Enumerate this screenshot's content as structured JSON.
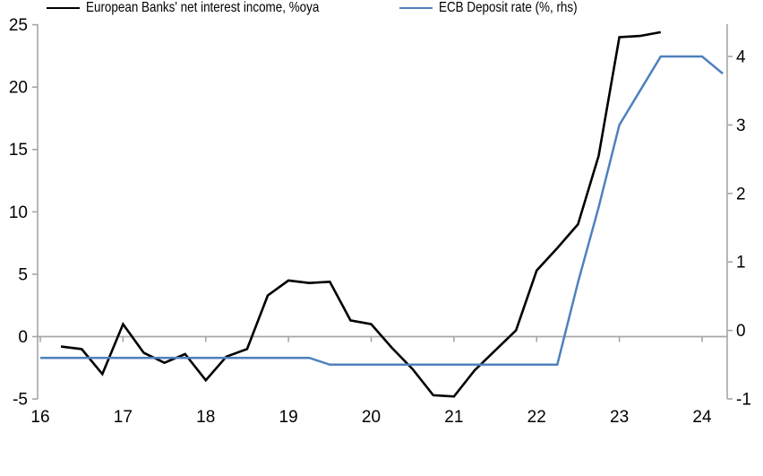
{
  "chart_data": {
    "type": "line",
    "title": "",
    "xlabel": "",
    "ylabel": "",
    "x_axis": {
      "ticks": [
        16,
        17,
        18,
        19,
        20,
        21,
        22,
        23,
        24
      ],
      "tick_labels": [
        "16",
        "17",
        "18",
        "19",
        "20",
        "21",
        "22",
        "23",
        "24"
      ],
      "range": [
        16,
        24.3
      ]
    },
    "left_axis": {
      "ticks": [
        -5,
        0,
        5,
        10,
        15,
        20,
        25
      ],
      "tick_labels": [
        "-5",
        "0",
        "5",
        "10",
        "15",
        "20",
        "25"
      ],
      "range": [
        -5,
        25.1
      ]
    },
    "right_axis": {
      "ticks": [
        -1,
        0,
        1,
        2,
        3,
        4
      ],
      "tick_labels": [
        "-1",
        "0",
        "1",
        "2",
        "3",
        "4"
      ],
      "range": [
        -1,
        4.47
      ]
    },
    "grid": "zero-line-only",
    "legend_position": "bottom",
    "colors": {
      "nii_line": "#000000",
      "ecb_line": "#4F81BD",
      "axis_gray": "#A6A6A6",
      "text": "#000000"
    },
    "series": [
      {
        "name": "European Banks' net interest income, %oya",
        "axis": "left",
        "color": "#000000",
        "x": [
          16.25,
          16.5,
          16.75,
          17.0,
          17.25,
          17.5,
          17.75,
          18.0,
          18.25,
          18.5,
          18.75,
          19.0,
          19.25,
          19.5,
          19.75,
          20.0,
          20.25,
          20.5,
          20.75,
          21.0,
          21.25,
          21.5,
          21.75,
          22.0,
          22.25,
          22.5,
          22.75,
          23.0,
          23.25,
          23.5
        ],
        "values": [
          -0.8,
          -1.0,
          -3.0,
          1.0,
          -1.3,
          -2.1,
          -1.4,
          -3.5,
          -1.6,
          -1.0,
          3.3,
          4.5,
          4.3,
          4.4,
          1.3,
          1.0,
          -0.9,
          -2.6,
          -4.7,
          -4.8,
          -2.7,
          -1.1,
          0.5,
          5.3,
          7.1,
          9.0,
          14.5,
          24.0,
          24.1,
          24.4
        ]
      },
      {
        "name": "ECB Deposit rate (%, rhs)",
        "axis": "right",
        "color": "#4F81BD",
        "x": [
          16.0,
          16.25,
          16.5,
          16.75,
          17.0,
          17.25,
          17.5,
          17.75,
          18.0,
          18.25,
          18.5,
          18.75,
          19.0,
          19.25,
          19.5,
          19.75,
          20.0,
          20.25,
          20.5,
          20.75,
          21.0,
          21.25,
          21.5,
          21.75,
          22.0,
          22.25,
          22.5,
          22.75,
          23.0,
          23.25,
          23.5,
          23.75,
          24.0,
          24.25
        ],
        "values": [
          -0.4,
          -0.4,
          -0.4,
          -0.4,
          -0.4,
          -0.4,
          -0.4,
          -0.4,
          -0.4,
          -0.4,
          -0.4,
          -0.4,
          -0.4,
          -0.4,
          -0.5,
          -0.5,
          -0.5,
          -0.5,
          -0.5,
          -0.5,
          -0.5,
          -0.5,
          -0.5,
          -0.5,
          -0.5,
          -0.5,
          0.7,
          1.8,
          3.0,
          3.5,
          4.0,
          4.0,
          4.0,
          3.75
        ]
      }
    ]
  }
}
